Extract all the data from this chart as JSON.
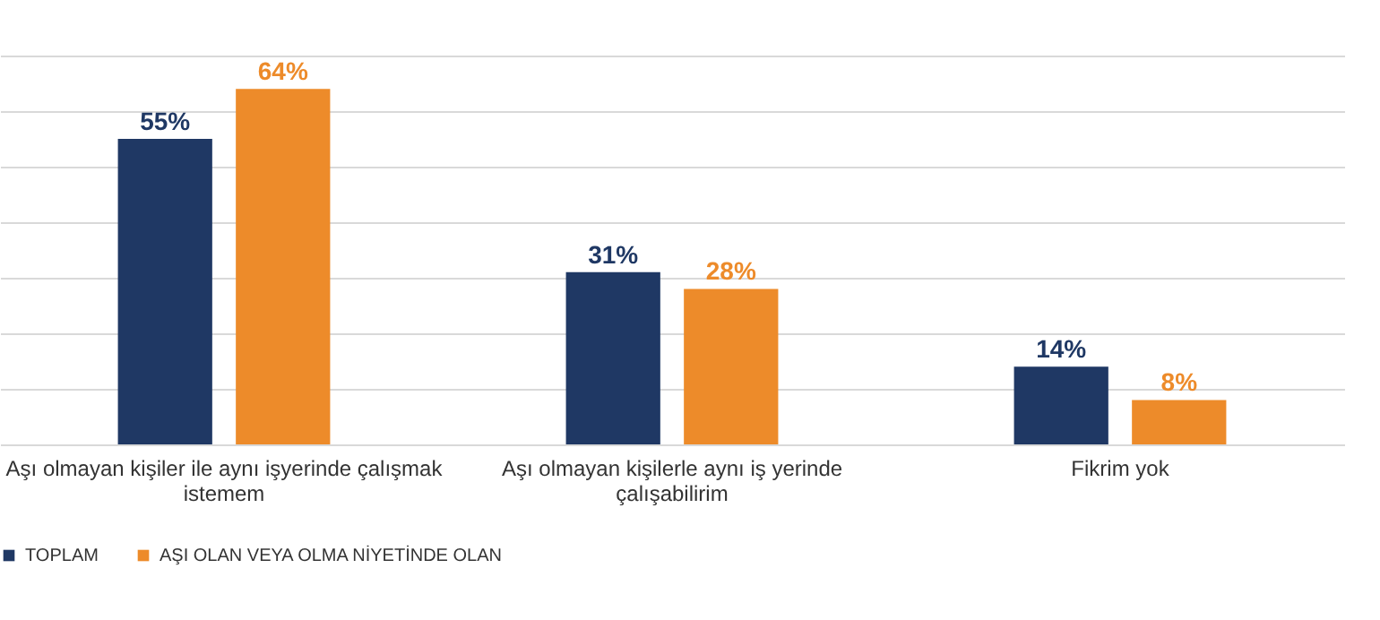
{
  "chart_data": {
    "type": "bar",
    "categories": [
      "Aşı olmayan kişiler ile aynı işyerinde çalışmak istemem",
      "Aşı olmayan kişilerle aynı iş yerinde çalışabilirim",
      "Fikrim yok"
    ],
    "series": [
      {
        "name": "TOPLAM",
        "color": "#1f3864",
        "values": [
          55,
          31,
          14
        ],
        "value_labels": [
          "55%",
          "31%",
          "14%"
        ]
      },
      {
        "name": "AŞI OLAN VEYA OLMA NİYETİNDE OLAN",
        "color": "#ed8b2a",
        "values": [
          64,
          28,
          8
        ],
        "value_labels": [
          "64%",
          "28%",
          "8%"
        ]
      }
    ],
    "ylim": [
      0,
      70
    ],
    "yticks": [
      0,
      10,
      20,
      30,
      40,
      50,
      60,
      70
    ],
    "grid": "y",
    "legend": "bottom",
    "tick_labels": "x"
  }
}
